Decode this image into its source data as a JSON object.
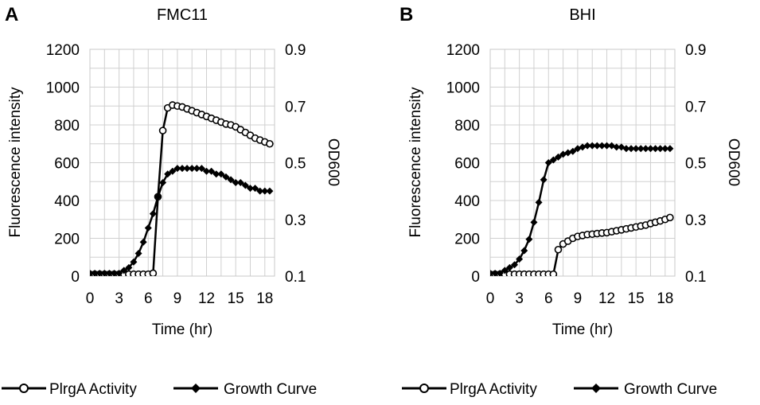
{
  "chart_data": [
    {
      "panel_label": "A",
      "type": "line",
      "title": "FMC11",
      "xlabel": "Time (hr)",
      "ylabel": "Fluorescence intensity",
      "y2label": "OD600",
      "xlim": [
        0,
        19
      ],
      "ylim": [
        0,
        1200
      ],
      "y2lim": [
        0.1,
        0.9
      ],
      "xticks": [
        "0",
        "3",
        "6",
        "9",
        "12",
        "15",
        "18"
      ],
      "yticks": [
        "0",
        "200",
        "400",
        "600",
        "800",
        "1000",
        "1200"
      ],
      "y2ticks": [
        "0.1",
        "0.3",
        "0.5",
        "0.7",
        "0.9"
      ],
      "grid": true,
      "legend": [
        "PlrgA Activity",
        "Growth Curve"
      ],
      "legend_position": "bottom",
      "series": [
        {
          "name": "PlrgA Activity",
          "axis": "left",
          "marker": "open-circle",
          "x": [
            0,
            0.5,
            1,
            1.5,
            2,
            2.5,
            3,
            3.5,
            4,
            4.5,
            5,
            5.5,
            6,
            6.5,
            7,
            7.5,
            8,
            8.5,
            9,
            9.5,
            10,
            10.5,
            11,
            11.5,
            12,
            12.5,
            13,
            13.5,
            14,
            14.5,
            15,
            15.5,
            16,
            16.5,
            17,
            17.5,
            18,
            18.5
          ],
          "values": [
            10,
            10,
            10,
            10,
            10,
            10,
            10,
            10,
            10,
            10,
            10,
            10,
            10,
            15,
            420,
            770,
            890,
            905,
            900,
            895,
            885,
            875,
            865,
            855,
            845,
            835,
            825,
            815,
            805,
            800,
            790,
            775,
            760,
            745,
            730,
            720,
            710,
            700
          ]
        },
        {
          "name": "Growth Curve",
          "axis": "right",
          "marker": "filled-diamond",
          "x": [
            0,
            0.5,
            1,
            1.5,
            2,
            2.5,
            3,
            3.5,
            4,
            4.5,
            5,
            5.5,
            6,
            6.5,
            7,
            7.5,
            8,
            8.5,
            9,
            9.5,
            10,
            10.5,
            11,
            11.5,
            12,
            12.5,
            13,
            13.5,
            14,
            14.5,
            15,
            15.5,
            16,
            16.5,
            17,
            17.5,
            18,
            18.5
          ],
          "values": [
            0.11,
            0.11,
            0.11,
            0.11,
            0.11,
            0.11,
            0.11,
            0.12,
            0.13,
            0.15,
            0.18,
            0.22,
            0.27,
            0.32,
            0.38,
            0.43,
            0.46,
            0.47,
            0.48,
            0.48,
            0.48,
            0.48,
            0.48,
            0.48,
            0.47,
            0.47,
            0.46,
            0.46,
            0.45,
            0.44,
            0.43,
            0.43,
            0.42,
            0.41,
            0.41,
            0.4,
            0.4,
            0.4
          ]
        }
      ]
    },
    {
      "panel_label": "B",
      "type": "line",
      "title": "BHI",
      "xlabel": "Time (hr)",
      "ylabel": "Fluorescence intensity",
      "y2label": "OD600",
      "xlim": [
        0,
        19
      ],
      "ylim": [
        0,
        1200
      ],
      "y2lim": [
        0.1,
        0.9
      ],
      "xticks": [
        "0",
        "3",
        "6",
        "9",
        "12",
        "15",
        "18"
      ],
      "yticks": [
        "0",
        "200",
        "400",
        "600",
        "800",
        "1000",
        "1200"
      ],
      "y2ticks": [
        "0.1",
        "0.3",
        "0.5",
        "0.7",
        "0.9"
      ],
      "grid": true,
      "legend": [
        "PlrgA Activity",
        "Growth Curve"
      ],
      "legend_position": "bottom",
      "series": [
        {
          "name": "PlrgA Activity",
          "axis": "left",
          "marker": "open-circle",
          "x": [
            0,
            0.5,
            1,
            1.5,
            2,
            2.5,
            3,
            3.5,
            4,
            4.5,
            5,
            5.5,
            6,
            6.5,
            7,
            7.5,
            8,
            8.5,
            9,
            9.5,
            10,
            10.5,
            11,
            11.5,
            12,
            12.5,
            13,
            13.5,
            14,
            14.5,
            15,
            15.5,
            16,
            16.5,
            17,
            17.5,
            18,
            18.5
          ],
          "values": [
            10,
            10,
            10,
            10,
            10,
            10,
            10,
            10,
            10,
            10,
            10,
            10,
            10,
            10,
            140,
            170,
            185,
            200,
            210,
            215,
            220,
            222,
            225,
            228,
            230,
            235,
            240,
            245,
            250,
            255,
            260,
            265,
            270,
            278,
            285,
            292,
            300,
            310
          ]
        },
        {
          "name": "Growth Curve",
          "axis": "right",
          "marker": "filled-diamond",
          "x": [
            0,
            0.5,
            1,
            1.5,
            2,
            2.5,
            3,
            3.5,
            4,
            4.5,
            5,
            5.5,
            6,
            6.5,
            7,
            7.5,
            8,
            8.5,
            9,
            9.5,
            10,
            10.5,
            11,
            11.5,
            12,
            12.5,
            13,
            13.5,
            14,
            14.5,
            15,
            15.5,
            16,
            16.5,
            17,
            17.5,
            18,
            18.5
          ],
          "values": [
            0.11,
            0.11,
            0.11,
            0.12,
            0.13,
            0.14,
            0.16,
            0.19,
            0.23,
            0.29,
            0.36,
            0.44,
            0.5,
            0.51,
            0.52,
            0.53,
            0.535,
            0.54,
            0.55,
            0.555,
            0.56,
            0.56,
            0.56,
            0.56,
            0.56,
            0.56,
            0.555,
            0.555,
            0.55,
            0.55,
            0.55,
            0.55,
            0.55,
            0.55,
            0.55,
            0.55,
            0.55,
            0.55
          ]
        }
      ]
    }
  ]
}
